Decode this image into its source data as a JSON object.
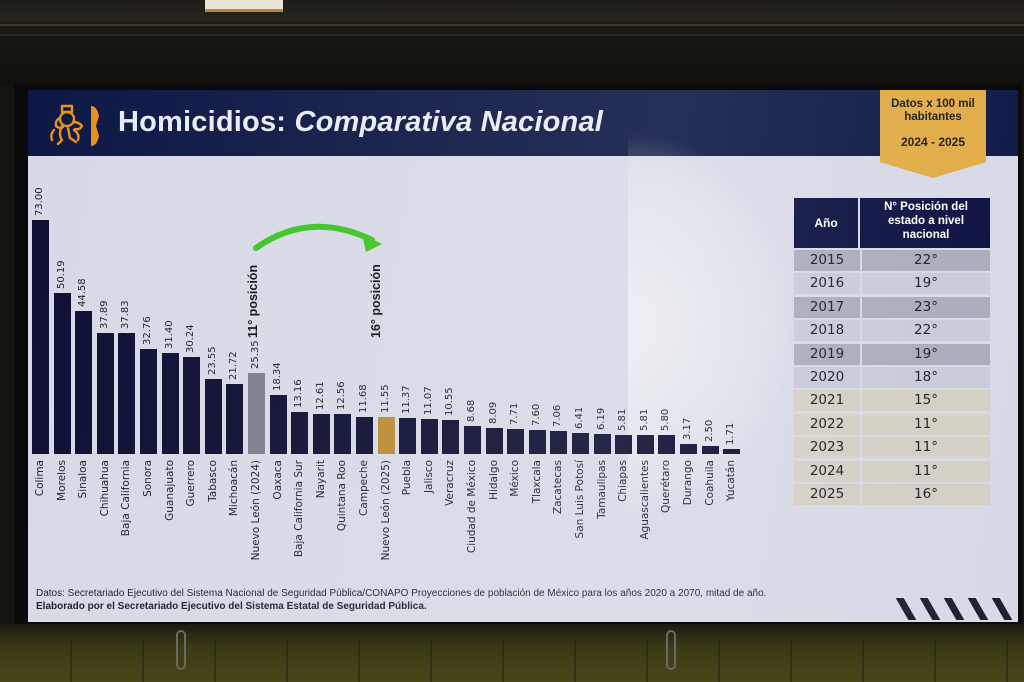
{
  "header": {
    "title_main": "Homicidios:",
    "title_italic": "Comparativa Nacional",
    "logo_icon": "lion-crest-icon"
  },
  "badge": {
    "line1": "Datos x 100 mil",
    "line2": "habitantes",
    "years": "2024 - 2025"
  },
  "annotations": {
    "left": "11° posición",
    "right": "16° posición",
    "arrow_icon": "curved-arrow-icon",
    "arrow_color": "#3cc424"
  },
  "colors": {
    "bar_default": "#0d0f33",
    "bar_nl_2024": "#7b7e8c",
    "bar_nl_2025": "#b98a32",
    "header_bg": "#0e1845",
    "badge_bg": "#e1ab45"
  },
  "chart_data": {
    "type": "bar",
    "title": "Homicidios: Comparativa Nacional",
    "subtitle": "Datos x 100 mil habitantes 2024 - 2025",
    "xlabel": "",
    "ylabel": "",
    "ylim": [
      0,
      75
    ],
    "grid": false,
    "legend": null,
    "categories": [
      "Colima",
      "Morelos",
      "Sinaloa",
      "Chihuahua",
      "Baja California",
      "Sonora",
      "Guanajuato",
      "Guerrero",
      "Tabasco",
      "Michoacán",
      "Nuevo León (2024)",
      "Oaxaca",
      "Baja California Sur",
      "Nayarit",
      "Quintana Roo",
      "Campeche",
      "Nuevo León (2025)",
      "Puebla",
      "Jalisco",
      "Veracruz",
      "Ciudad de México",
      "Hidalgo",
      "México",
      "Tlaxcala",
      "Zacatecas",
      "San Luis Potosí",
      "Tamaulipas",
      "Chiapas",
      "Aguascalientes",
      "Querétaro",
      "Durango",
      "Coahuila",
      "Yucatán"
    ],
    "values": [
      73.0,
      50.19,
      44.58,
      37.89,
      37.83,
      32.76,
      31.4,
      30.24,
      23.55,
      21.72,
      25.35,
      18.34,
      13.16,
      12.61,
      12.56,
      11.68,
      11.55,
      11.37,
      11.07,
      10.55,
      8.68,
      8.09,
      7.71,
      7.6,
      7.06,
      6.41,
      6.19,
      5.81,
      5.81,
      5.8,
      3.17,
      2.5,
      1.71
    ],
    "value_labels": [
      "73.00",
      "50.19",
      "44.58",
      "37.89",
      "37.83",
      "32.76",
      "31.40",
      "30.24",
      "23.55",
      "21.72",
      "25.35",
      "18.34",
      "13.16",
      "12.61",
      "12.56",
      "11.68",
      "11.55",
      "11.37",
      "11.07",
      "10.55",
      "8.68",
      "8.09",
      "7.71",
      "7.60",
      "7.06",
      "6.41",
      "6.19",
      "5.81",
      "5.81",
      "5.80",
      "3.17",
      "2.50",
      "1.71"
    ],
    "highlights": {
      "Nuevo León (2024)": "gray",
      "Nuevo León (2025)": "gold"
    },
    "annotations": [
      "11° posición",
      "16° posición"
    ]
  },
  "table": {
    "headers": [
      "Año",
      "N° Posición del estado a nivel nacional"
    ],
    "header_lines": [
      "N° Posición del",
      "estado a nivel",
      "nacional"
    ],
    "rows": [
      {
        "year": "2015",
        "position": "22°"
      },
      {
        "year": "2016",
        "position": "19°"
      },
      {
        "year": "2017",
        "position": "23°"
      },
      {
        "year": "2018",
        "position": "22°"
      },
      {
        "year": "2019",
        "position": "19°"
      },
      {
        "year": "2020",
        "position": "18°"
      },
      {
        "year": "2021",
        "position": "15°"
      },
      {
        "year": "2022",
        "position": "11°"
      },
      {
        "year": "2023",
        "position": "11°"
      },
      {
        "year": "2024",
        "position": "11°"
      },
      {
        "year": "2025",
        "position": "16°"
      }
    ]
  },
  "footer": {
    "source": "Datos: Secretariado Ejecutivo del Sistema Nacional de Seguridad Pública/CONAPO Proyecciones de población de México para los años 2020 a 2070, mitad de año.",
    "credit": "Elaborado por el Secretariado Ejecutivo del Sistema Estatal de Seguridad Pública."
  }
}
